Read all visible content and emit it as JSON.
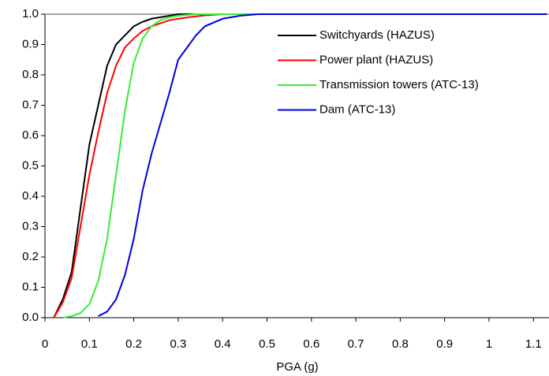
{
  "chart_data": {
    "type": "line",
    "x_label": "PGA (g)",
    "x": [
      0.02,
      0.04,
      0.06,
      0.08,
      0.1,
      0.12,
      0.14,
      0.16,
      0.18,
      0.2,
      0.22,
      0.24,
      0.26,
      0.28,
      0.3,
      0.34,
      0.36,
      0.4,
      0.44,
      0.48,
      1.13
    ],
    "series": [
      {
        "name": "Switchyards (HAZUS)",
        "color": "#000000",
        "values": [
          0,
          0.06,
          0.15,
          0.36,
          0.57,
          0.7,
          0.83,
          0.9,
          0.93,
          0.96,
          0.975,
          0.985,
          0.99,
          0.995,
          1.0,
          1.0,
          1.0,
          1.0,
          1.0,
          1.0,
          1.0
        ]
      },
      {
        "name": "Power plant (HAZUS)",
        "color": "#ff0000",
        "values": [
          0,
          0.05,
          0.13,
          0.3,
          0.47,
          0.61,
          0.74,
          0.83,
          0.89,
          0.92,
          0.945,
          0.96,
          0.97,
          0.98,
          0.985,
          0.993,
          0.996,
          1.0,
          1.0,
          1.0,
          1.0
        ]
      },
      {
        "name": "Transmission towers (ATC-13)",
        "color": "#33ee33",
        "values": [
          null,
          0,
          0.005,
          0.015,
          0.045,
          0.12,
          0.26,
          0.47,
          0.68,
          0.84,
          0.92,
          0.96,
          0.98,
          0.99,
          0.995,
          1.0,
          1.0,
          1.0,
          1.0,
          1.0,
          1.0
        ]
      },
      {
        "name": "Dam (ATC-13)",
        "color": "#0000dd",
        "values": [
          null,
          null,
          null,
          null,
          null,
          0.005,
          0.02,
          0.06,
          0.14,
          0.26,
          0.42,
          0.54,
          0.64,
          0.74,
          0.85,
          0.93,
          0.96,
          0.985,
          0.995,
          1.0,
          1.0
        ]
      }
    ],
    "xlim": [
      0,
      1.135
    ],
    "ylim": [
      0,
      1
    ],
    "xticks": [
      0,
      0.1,
      0.2,
      0.3,
      0.4,
      0.5,
      0.6,
      0.7,
      0.8,
      0.9,
      1,
      1.1
    ],
    "yticks": [
      {
        "value": 0,
        "label": "0.0"
      },
      {
        "value": 0.1,
        "label": "0.1"
      },
      {
        "value": 0.2,
        "label": "0.2"
      },
      {
        "value": 0.3,
        "label": "0.3"
      },
      {
        "value": 0.4,
        "label": "0.4"
      },
      {
        "value": 0.5,
        "label": "0.5"
      },
      {
        "value": 0.6,
        "label": "0.6"
      },
      {
        "value": 0.7,
        "label": "0.7"
      },
      {
        "value": 0.8,
        "label": "0.8"
      },
      {
        "value": 0.9,
        "label": "0.9"
      },
      {
        "value": 1,
        "label": "1.0"
      }
    ],
    "legend": "upper right"
  }
}
